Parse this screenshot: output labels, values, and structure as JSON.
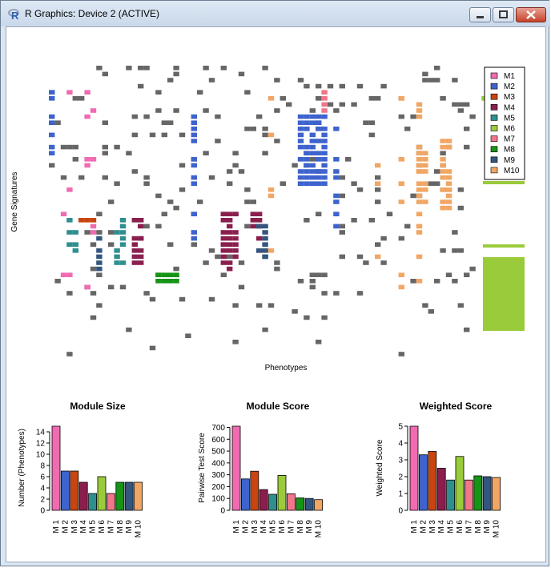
{
  "window": {
    "title": "R Graphics: Device 2 (ACTIVE)",
    "icon": "r-logo-icon",
    "buttons": {
      "minimize": "minimize-icon",
      "maximize": "maximize-icon",
      "close": "close-icon"
    }
  },
  "heatmap": {
    "xlabel": "Phenotypes",
    "ylabel": "Gene Signatures",
    "legend": [
      "M1",
      "M2",
      "M3",
      "M4",
      "M5",
      "M6",
      "M7",
      "M8",
      "M9",
      "M10"
    ],
    "colors": {
      "M1": "#f06bb1",
      "M2": "#3e63cc",
      "M3": "#c9440e",
      "M4": "#8a1f4e",
      "M5": "#2f8f8f",
      "M6": "#9acb3a",
      "M7": "#f1768a",
      "M8": "#169416",
      "M9": "#33557e",
      "M10": "#f2a664",
      "unassigned": "#666666"
    }
  },
  "chart_data": [
    {
      "type": "bar",
      "title": "Module Size",
      "ylabel": "Number (Phenotypes)",
      "categories": [
        "M 1",
        "M 2",
        "M 3",
        "M 4",
        "M 5",
        "M 6",
        "M 7",
        "M 8",
        "M 9",
        "M 10"
      ],
      "values": [
        15,
        7,
        7,
        5,
        3,
        6,
        3,
        5,
        5,
        5
      ],
      "ylim": [
        0,
        15
      ],
      "yticks": [
        0,
        2,
        4,
        6,
        8,
        10,
        12,
        14
      ],
      "colors": [
        "#f06bb1",
        "#3e63cc",
        "#c9440e",
        "#8a1f4e",
        "#2f8f8f",
        "#9acb3a",
        "#f1768a",
        "#169416",
        "#33557e",
        "#f2a664"
      ]
    },
    {
      "type": "bar",
      "title": "Module Score",
      "ylabel": "Pairwise Test Score",
      "categories": [
        "M 1",
        "M 2",
        "M 3",
        "M 4",
        "M 5",
        "M 6",
        "M 7",
        "M 8",
        "M 9",
        "M 10"
      ],
      "values": [
        710,
        265,
        330,
        175,
        135,
        295,
        140,
        105,
        100,
        90
      ],
      "ylim": [
        0,
        710
      ],
      "yticks": [
        0,
        100,
        200,
        300,
        400,
        500,
        600,
        700
      ],
      "colors": [
        "#f06bb1",
        "#3e63cc",
        "#c9440e",
        "#8a1f4e",
        "#2f8f8f",
        "#9acb3a",
        "#f1768a",
        "#169416",
        "#33557e",
        "#f2a664"
      ]
    },
    {
      "type": "bar",
      "title": "Weighted Score",
      "ylabel": "Weighted Score",
      "categories": [
        "M 1",
        "M 2",
        "M 3",
        "M 4",
        "M 5",
        "M 6",
        "M 7",
        "M 8",
        "M 9",
        "M 10"
      ],
      "values": [
        5.0,
        3.3,
        3.5,
        2.5,
        1.8,
        3.2,
        1.8,
        2.05,
        2.0,
        1.95
      ],
      "ylim": [
        0,
        5
      ],
      "yticks": [
        0,
        1,
        2,
        3,
        4,
        5
      ],
      "colors": [
        "#f06bb1",
        "#3e63cc",
        "#c9440e",
        "#8a1f4e",
        "#2f8f8f",
        "#9acb3a",
        "#f1768a",
        "#169416",
        "#33557e",
        "#f2a664"
      ]
    }
  ]
}
